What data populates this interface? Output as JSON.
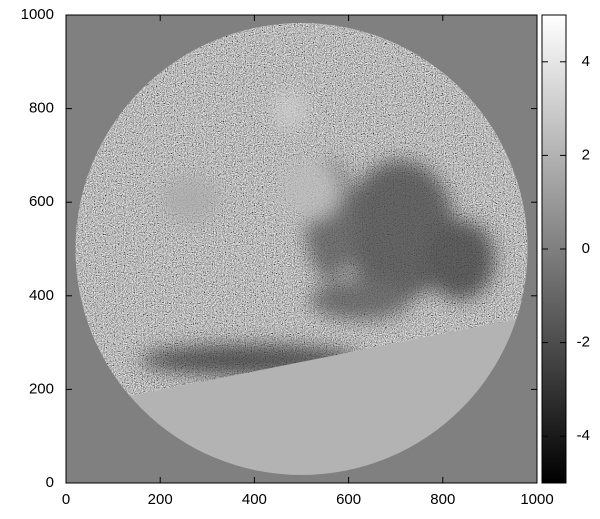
{
  "chart_data": {
    "type": "heatmap",
    "xlim": [
      0,
      1000
    ],
    "xticks": [
      0,
      200,
      400,
      600,
      800,
      1000
    ],
    "ylim": [
      0,
      1000
    ],
    "yticks": [
      0,
      200,
      400,
      600,
      800,
      1000
    ],
    "colormap": "gray",
    "colorbar": {
      "lim": [
        -5,
        5
      ],
      "ticks": [
        -4,
        -2,
        0,
        2,
        4
      ]
    }
  }
}
